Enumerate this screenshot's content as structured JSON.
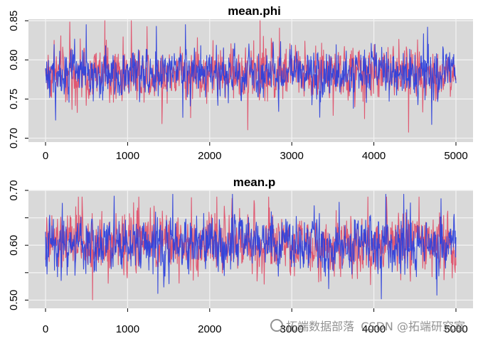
{
  "chart_data": [
    {
      "type": "line",
      "title": "mean.phi",
      "xlabel": "",
      "ylabel": "",
      "xlim": [
        0,
        5000
      ],
      "ylim": [
        0.695,
        0.852
      ],
      "xticks": [
        0,
        1000,
        2000,
        3000,
        4000,
        5000
      ],
      "yticks": [
        0.7,
        0.75,
        0.8,
        0.85
      ],
      "ytick_labels": [
        "0.70",
        "0.75",
        "0.80",
        "0.85"
      ],
      "grid": true,
      "series": [
        {
          "color": "#e0506a",
          "n": 5000,
          "center": 0.783,
          "spread": 0.017,
          "min": 0.697,
          "max": 0.85
        },
        {
          "color": "#2a3fdc",
          "n": 5000,
          "center": 0.783,
          "spread": 0.015,
          "min": 0.712,
          "max": 0.845
        }
      ]
    },
    {
      "type": "line",
      "title": "mean.p",
      "xlabel": "",
      "ylabel": "",
      "xlim": [
        0,
        5000
      ],
      "ylim": [
        0.485,
        0.7
      ],
      "xticks": [
        0,
        1000,
        2000,
        3000,
        4000,
        5000
      ],
      "yticks": [
        0.5,
        0.55,
        0.6,
        0.65,
        0.7
      ],
      "ytick_labels": [
        "0.50",
        "",
        "0.60",
        "",
        "0.70"
      ],
      "grid": true,
      "series": [
        {
          "color": "#e0506a",
          "n": 5000,
          "center": 0.603,
          "spread": 0.027,
          "min": 0.487,
          "max": 0.688
        },
        {
          "color": "#2a3fdc",
          "n": 5000,
          "center": 0.602,
          "spread": 0.025,
          "min": 0.49,
          "max": 0.693
        }
      ]
    }
  ],
  "watermark": {
    "text": "CSDN @拓端研究室",
    "logo_text": "拓端数据部落"
  }
}
